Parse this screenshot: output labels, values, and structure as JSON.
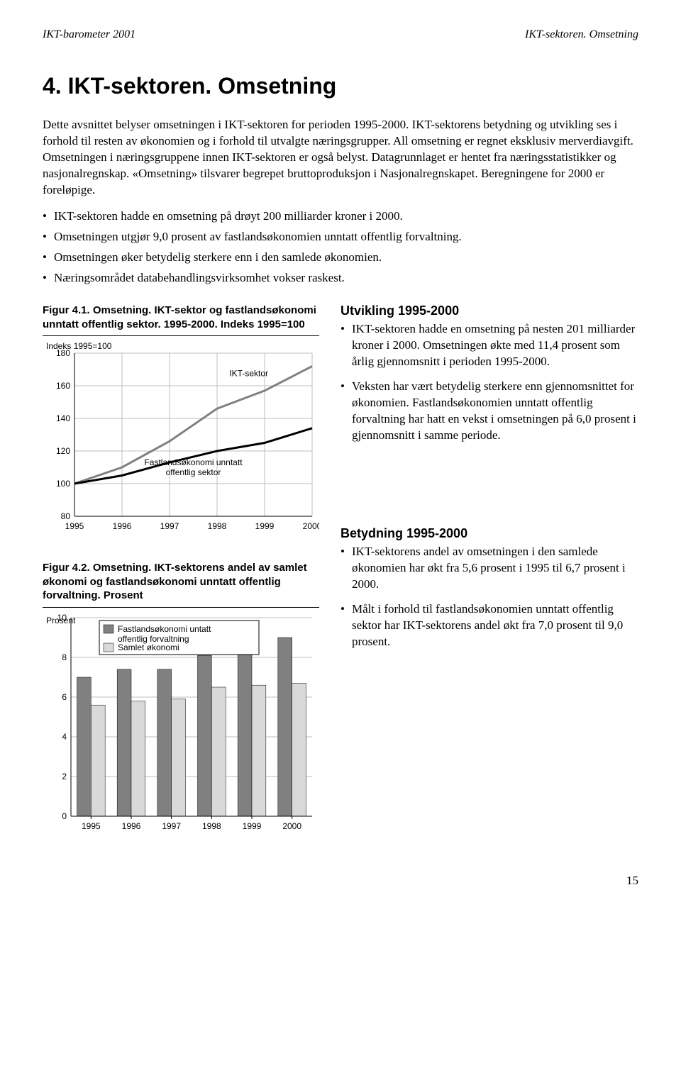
{
  "header": {
    "left": "IKT-barometer 2001",
    "right": "IKT-sektoren. Omsetning"
  },
  "title": "4. IKT-sektoren. Omsetning",
  "intro": "Dette avsnittet belyser omsetningen i IKT-sektoren for perioden 1995-2000. IKT-sektorens betydning og utvikling ses i forhold til resten av økonomien og i forhold til utvalgte næringsgrupper. All omsetning er regnet eksklusiv merverdiavgift. Omsetningen i næringsgruppene innen IKT-sektoren er også belyst. Datagrunnlaget er hentet fra næringsstatistikker og nasjonalregnskap. «Omsetning» tilsvarer begrepet bruttoproduksjon i Nasjonalregnskapet. Beregningene for 2000 er foreløpige.",
  "bullets": [
    "IKT-sektoren hadde en omsetning på drøyt 200 milliarder kroner i 2000.",
    "Omsetningen utgjør 9,0 prosent av fastlandsøkonomien unntatt offentlig forvaltning.",
    "Omsetningen øker betydelig sterkere enn i den samlede økonomien.",
    "Næringsområdet databehandlingsvirksomhet vokser raskest."
  ],
  "fig1": {
    "caption": "Figur 4.1. Omsetning. IKT-sektor og fastlandsøkonomi unntatt offentlig sektor. 1995-2000. Indeks 1995=100",
    "type": "line",
    "y_axis_title": "Indeks 1995=100",
    "years": [
      "1995",
      "1996",
      "1997",
      "1998",
      "1999",
      "2000"
    ],
    "ylim": [
      80,
      180
    ],
    "ytick_step": 20,
    "series": [
      {
        "label": "IKT-sektor",
        "color": "#808080",
        "width": 3,
        "values": [
          100,
          110,
          126,
          146,
          157,
          172
        ]
      },
      {
        "label": "Fastlandsøkonomi unntatt offentlig sektor",
        "color": "#000000",
        "width": 3,
        "values": [
          100,
          105,
          113,
          120,
          125,
          134
        ]
      }
    ],
    "background_color": "#ffffff",
    "grid_color": "#bfbfbf",
    "tick_fontsize": 12,
    "label_fontsize": 12
  },
  "fig2": {
    "caption": "Figur 4.2. Omsetning. IKT-sektorens andel av samlet økonomi og fastlandsøkonomi unntatt offentlig forvaltning. Prosent",
    "type": "bar",
    "y_axis_title": "Prosent",
    "years": [
      "1995",
      "1996",
      "1997",
      "1998",
      "1999",
      "2000"
    ],
    "ylim": [
      0,
      10
    ],
    "ytick_step": 2,
    "series": [
      {
        "label": "Fastlandsøkonomi untatt offentlig forvaltning",
        "color": "#808080",
        "values": [
          7.0,
          7.4,
          7.4,
          8.1,
          8.7,
          9.0
        ]
      },
      {
        "label": "Samlet økonomi",
        "color": "#d9d9d9",
        "values": [
          5.6,
          5.8,
          5.9,
          6.5,
          6.6,
          6.7
        ]
      }
    ],
    "bar_group_width": 0.7,
    "background_color": "#ffffff",
    "grid_color": "#bfbfbf",
    "tick_fontsize": 12,
    "label_fontsize": 12,
    "legend_box_stroke": "#000000"
  },
  "utvikling": {
    "title": "Utvikling 1995-2000",
    "items": [
      "IKT-sektoren hadde en omsetning på nesten 201 milliarder kroner i 2000. Omsetningen økte med 11,4 prosent som årlig gjennomsnitt i perioden 1995-2000.",
      "Veksten har vært betydelig sterkere enn gjennomsnittet for økonomien. Fastlandsøkonomien unntatt offentlig forvaltning har hatt en vekst i omsetningen på 6,0 prosent i gjennomsnitt i samme periode."
    ]
  },
  "betydning": {
    "title": "Betydning 1995-2000",
    "items": [
      "IKT-sektorens andel av omsetningen i den samlede økonomien har økt fra 5,6 prosent i 1995 til 6,7 prosent i 2000.",
      "Målt i forhold til fastlandsøkonomien unntatt offentlig sektor har IKT-sektorens andel økt fra 7,0 prosent til 9,0 prosent."
    ]
  },
  "page_number": "15"
}
